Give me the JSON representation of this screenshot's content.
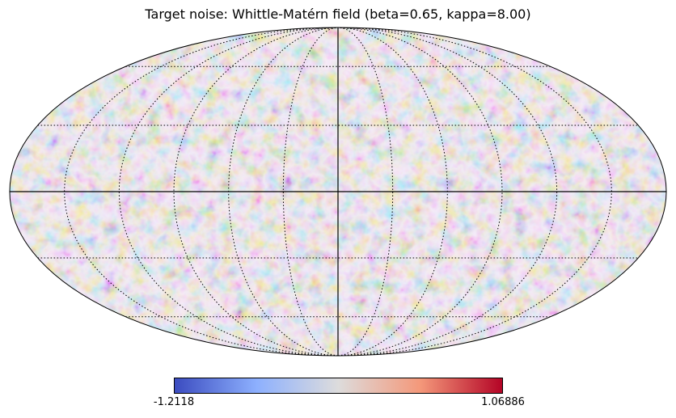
{
  "chart_data": {
    "type": "heatmap",
    "projection": "mollweide",
    "title": "Target noise: Whittle-Matérn field (beta=0.65, kappa=8.00)",
    "field": {
      "beta": 0.65,
      "kappa": 8.0
    },
    "colormap": "coolwarm",
    "colorbar": {
      "min": -1.2118,
      "max": 1.06886,
      "min_label": "-1.2118",
      "max_label": "1.06886"
    },
    "graticule": {
      "meridian_step_deg": 30,
      "parallel_step_deg": 30,
      "style": "dotted",
      "axes_style": "solid"
    },
    "colors": {
      "low": "#3b4cc0",
      "mid": "#dddcdc",
      "high": "#b40426"
    }
  }
}
